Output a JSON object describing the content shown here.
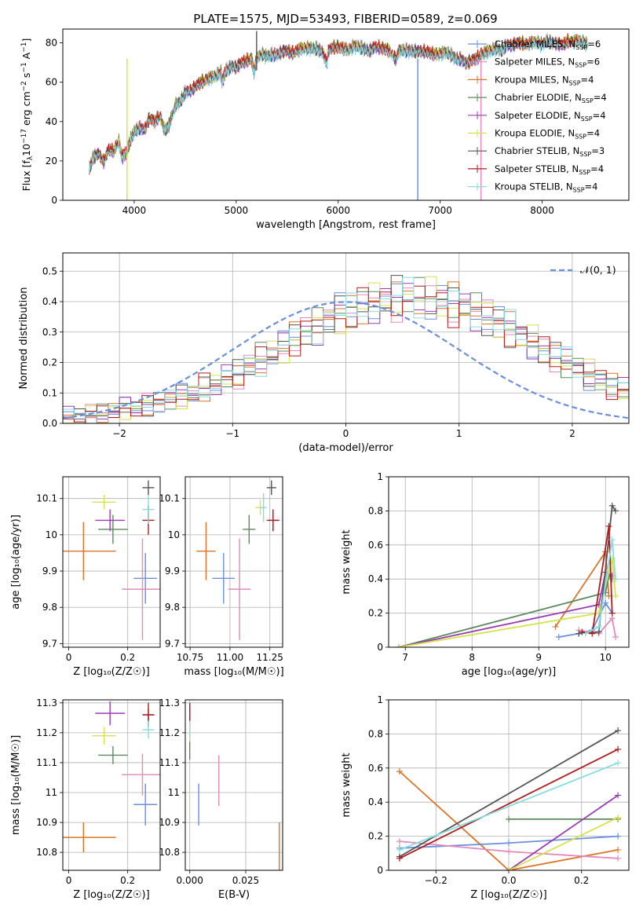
{
  "title": "PLATE=1575, MJD=53493, FIBERID=0589, z=0.069",
  "series": [
    {
      "name": "Chabrier MILES",
      "nssp": "6",
      "color": "#6a8fdd"
    },
    {
      "name": "Salpeter MILES",
      "nssp": "6",
      "color": "#e389bb"
    },
    {
      "name": "Kroupa MILES",
      "nssp": "4",
      "color": "#d9762a"
    },
    {
      "name": "Chabrier ELODIE",
      "nssp": "4",
      "color": "#5c8a5c"
    },
    {
      "name": "Salpeter ELODIE",
      "nssp": "4",
      "color": "#9a3cb5"
    },
    {
      "name": "Kroupa ELODIE",
      "nssp": "4",
      "color": "#d6e24a"
    },
    {
      "name": "Chabrier STELIB",
      "nssp": "3",
      "color": "#555555"
    },
    {
      "name": "Salpeter STELIB",
      "nssp": "4",
      "color": "#b01c1c"
    },
    {
      "name": "Kroupa STELIB",
      "nssp": "4",
      "color": "#86dde0"
    }
  ],
  "chart_data": [
    {
      "id": "spectrum",
      "type": "line",
      "xlabel": "wavelength [Angstrom, rest frame]",
      "ylabel_main": "Flux [f",
      "ylabel_sub": "λ",
      "ylabel_rest": "10",
      "ylabel_exp1": "−17",
      "ylabel_rest2": " erg cm",
      "ylabel_exp2": "−2",
      "ylabel_rest3": " s",
      "ylabel_exp3": "−1",
      "ylabel_rest4": " A",
      "ylabel_exp4": "−1",
      "ylabel_end": "]",
      "xlim": [
        3300,
        8850
      ],
      "ylim": [
        0,
        87
      ],
      "xticks": [
        4000,
        5000,
        6000,
        7000,
        8000
      ],
      "yticks": [
        0,
        20,
        40,
        60,
        80
      ],
      "legend_prefix": "N",
      "legend_sub": "SSP",
      "x": [
        3560,
        3600,
        3650,
        3700,
        3750,
        3800,
        3850,
        3880,
        3920,
        3960,
        4000,
        4050,
        4100,
        4150,
        4200,
        4250,
        4300,
        4340,
        4400,
        4450,
        4500,
        4550,
        4600,
        4650,
        4700,
        4750,
        4800,
        4850,
        4861,
        4900,
        4950,
        5000,
        5050,
        5100,
        5150,
        5175,
        5200,
        5250,
        5300,
        5350,
        5400,
        5450,
        5500,
        5550,
        5600,
        5650,
        5700,
        5750,
        5800,
        5850,
        5890,
        5900,
        5950,
        6000,
        6050,
        6100,
        6150,
        6200,
        6250,
        6300,
        6350,
        6400,
        6450,
        6500,
        6563,
        6600,
        6650,
        6700,
        6750,
        6800,
        6850,
        6900,
        6950,
        7000,
        7050,
        7100,
        7150,
        7200,
        7250,
        7300,
        7350,
        7400,
        7450,
        7500,
        7550,
        7600,
        7650,
        7700,
        7750,
        7800,
        7850,
        7900,
        7950,
        8000,
        8050,
        8100,
        8150,
        8200,
        8250,
        8300,
        8350,
        8400,
        8450
      ],
      "y": [
        16,
        22,
        24,
        20,
        26,
        25,
        30,
        22,
        24,
        30,
        35,
        37,
        36,
        42,
        40,
        43,
        35,
        38,
        48,
        50,
        55,
        56,
        58,
        60,
        61,
        62,
        63,
        65,
        60,
        66,
        68,
        68,
        70,
        71,
        72,
        65,
        72,
        74,
        73,
        74,
        74,
        76,
        76,
        75,
        76,
        77,
        77,
        77,
        77,
        75,
        70,
        76,
        78,
        78,
        77,
        76,
        78,
        78,
        77,
        76,
        78,
        78,
        77,
        76,
        72,
        76,
        76,
        76,
        76,
        76,
        76,
        75,
        74,
        74,
        75,
        74,
        72,
        72,
        70,
        71,
        72,
        74,
        75,
        76,
        77,
        76,
        79,
        79,
        80,
        80,
        79,
        80,
        80,
        79,
        81,
        80,
        80,
        79,
        81,
        80,
        81,
        80,
        79
      ]
    },
    {
      "id": "residuals",
      "type": "histogram",
      "xlabel": "(data-model)/error",
      "ylabel": "Normed distribution",
      "xlim": [
        -2.5,
        2.5
      ],
      "ylim": [
        0,
        0.56
      ],
      "xticks": [
        "−2",
        "−1",
        "0",
        "1",
        "2"
      ],
      "xtick_values": [
        -2,
        -1,
        0,
        1,
        2
      ],
      "yticks": [
        0.0,
        0.1,
        0.2,
        0.3,
        0.4,
        0.5
      ],
      "legend": "𝒩(0, 1)",
      "bin_width": 0.1,
      "base": [
        0.02,
        0.02,
        0.03,
        0.03,
        0.04,
        0.05,
        0.05,
        0.06,
        0.07,
        0.08,
        0.09,
        0.1,
        0.12,
        0.13,
        0.15,
        0.16,
        0.19,
        0.21,
        0.23,
        0.25,
        0.28,
        0.3,
        0.32,
        0.34,
        0.36,
        0.37,
        0.39,
        0.4,
        0.4,
        0.41,
        0.42,
        0.41,
        0.41,
        0.4,
        0.39,
        0.38,
        0.37,
        0.35,
        0.33,
        0.31,
        0.29,
        0.27,
        0.24,
        0.22,
        0.2,
        0.18,
        0.16,
        0.14,
        0.12,
        0.11,
        0.09,
        0.08,
        0.07,
        0.06,
        0.05,
        0.04,
        0.04,
        0.03,
        0.03,
        0.02
      ]
    },
    {
      "id": "age_vs_Z",
      "type": "scatter",
      "xlabel": "Z [log₁₀(Z/Z☉)]",
      "ylabel": "age  [log₁₀(age/yr)]",
      "xlim": [
        -0.02,
        0.31
      ],
      "ylim": [
        9.69,
        10.16
      ],
      "xticks": [
        0.0,
        0.2
      ],
      "yticks": [
        9.7,
        9.8,
        9.9,
        10.0,
        10.1
      ],
      "points": [
        {
          "s": 0,
          "x": 0.26,
          "y": 9.88,
          "ex": 0.04,
          "ey": 0.07
        },
        {
          "s": 1,
          "x": 0.25,
          "y": 9.85,
          "ex": 0.07,
          "ey": 0.14
        },
        {
          "s": 2,
          "x": 0.05,
          "y": 9.955,
          "ex": 0.11,
          "ey": 0.08
        },
        {
          "s": 3,
          "x": 0.15,
          "y": 10.015,
          "ex": 0.05,
          "ey": 0.04
        },
        {
          "s": 4,
          "x": 0.14,
          "y": 10.04,
          "ex": 0.05,
          "ey": 0.03
        },
        {
          "s": 5,
          "x": 0.12,
          "y": 10.09,
          "ex": 0.04,
          "ey": 0.02
        },
        {
          "s": 6,
          "x": 0.27,
          "y": 10.13,
          "ex": 0.02,
          "ey": 0.02
        },
        {
          "s": 7,
          "x": 0.27,
          "y": 10.04,
          "ex": 0.02,
          "ey": 0.04
        },
        {
          "s": 8,
          "x": 0.27,
          "y": 10.07,
          "ex": 0.02,
          "ey": 0.04
        }
      ]
    },
    {
      "id": "age_vs_mass",
      "type": "scatter",
      "xlabel": "mass [log₁₀(M/M☉)]",
      "ylabel": "",
      "xlim": [
        10.72,
        11.33
      ],
      "ylim": [
        9.69,
        10.16
      ],
      "xticks": [
        "10.75",
        "11.00",
        "11.25"
      ],
      "xtick_values": [
        10.75,
        11.0,
        11.25
      ],
      "yticks": [
        9.7,
        9.8,
        9.9,
        10.0,
        10.1
      ],
      "points": [
        {
          "s": 0,
          "x": 10.96,
          "y": 9.88,
          "ex": 0.07,
          "ey": 0.07
        },
        {
          "s": 1,
          "x": 11.06,
          "y": 9.85,
          "ex": 0.07,
          "ey": 0.14
        },
        {
          "s": 2,
          "x": 10.85,
          "y": 9.955,
          "ex": 0.06,
          "ey": 0.08
        },
        {
          "s": 3,
          "x": 11.12,
          "y": 10.015,
          "ex": 0.04,
          "ey": 0.04
        },
        {
          "s": 4,
          "x": 11.27,
          "y": 10.04,
          "ex": 0.03,
          "ey": 0.03
        },
        {
          "s": 5,
          "x": 11.19,
          "y": 10.075,
          "ex": 0.03,
          "ey": 0.02
        },
        {
          "s": 6,
          "x": 11.26,
          "y": 10.13,
          "ex": 0.03,
          "ey": 0.02
        },
        {
          "s": 7,
          "x": 11.27,
          "y": 10.04,
          "ex": 0.04,
          "ey": 0.03
        },
        {
          "s": 8,
          "x": 11.21,
          "y": 10.075,
          "ex": 0.02,
          "ey": 0.04
        }
      ]
    },
    {
      "id": "weight_vs_age",
      "type": "line",
      "xlabel": "age  [log₁₀(age/yr)]",
      "ylabel": "mass weight",
      "xlim": [
        6.75,
        10.35
      ],
      "ylim": [
        0,
        1.0
      ],
      "xticks": [
        7,
        8,
        9,
        10
      ],
      "yticks": [
        0.0,
        0.2,
        0.4,
        0.6,
        0.8,
        1.0
      ],
      "lines": [
        {
          "s": 2,
          "pts": [
            [
              9.25,
              0.12
            ],
            [
              10.0,
              0.56
            ],
            [
              10.05,
              0.3
            ]
          ]
        },
        {
          "s": 3,
          "pts": [
            [
              6.9,
              0.0
            ],
            [
              10.0,
              0.32
            ],
            [
              10.05,
              0.42
            ],
            [
              10.1,
              0.4
            ]
          ]
        },
        {
          "s": 4,
          "pts": [
            [
              6.9,
              0.0
            ],
            [
              9.9,
              0.25
            ],
            [
              10.0,
              0.44
            ],
            [
              10.1,
              0.42
            ]
          ]
        },
        {
          "s": 5,
          "pts": [
            [
              6.9,
              0.0
            ],
            [
              9.9,
              0.2
            ],
            [
              10.1,
              0.52
            ],
            [
              10.15,
              0.3
            ]
          ]
        },
        {
          "s": 0,
          "pts": [
            [
              9.3,
              0.06
            ],
            [
              9.6,
              0.08
            ],
            [
              9.8,
              0.1
            ],
            [
              10.0,
              0.26
            ],
            [
              10.1,
              0.2
            ]
          ]
        },
        {
          "s": 1,
          "pts": [
            [
              9.6,
              0.1
            ],
            [
              9.9,
              0.08
            ],
            [
              10.1,
              0.17
            ],
            [
              10.15,
              0.06
            ]
          ]
        },
        {
          "s": 6,
          "pts": [
            [
              9.6,
              0.08
            ],
            [
              9.9,
              0.09
            ],
            [
              10.1,
              0.83
            ],
            [
              10.15,
              0.8
            ]
          ]
        },
        {
          "s": 7,
          "pts": [
            [
              9.65,
              0.09
            ],
            [
              9.8,
              0.08
            ],
            [
              10.05,
              0.71
            ],
            [
              10.1,
              0.2
            ]
          ]
        },
        {
          "s": 8,
          "pts": [
            [
              9.7,
              0.08
            ],
            [
              9.9,
              0.12
            ],
            [
              10.1,
              0.63
            ],
            [
              10.15,
              0.4
            ]
          ]
        }
      ]
    },
    {
      "id": "mass_vs_Z",
      "type": "scatter",
      "xlabel": "Z [log₁₀(Z/Z☉)]",
      "ylabel": "mass [log₁₀(M/M☉)]",
      "xlim": [
        -0.02,
        0.31
      ],
      "ylim": [
        10.74,
        11.31
      ],
      "xticks": [
        0.0,
        0.2
      ],
      "yticks": [
        10.8,
        10.9,
        11.0,
        11.1,
        11.2,
        11.3
      ],
      "points": [
        {
          "s": 0,
          "x": 0.26,
          "y": 10.96,
          "ex": 0.04,
          "ey": 0.07
        },
        {
          "s": 1,
          "x": 0.25,
          "y": 11.06,
          "ex": 0.07,
          "ey": 0.07
        },
        {
          "s": 2,
          "x": 0.05,
          "y": 10.85,
          "ex": 0.11,
          "ey": 0.05
        },
        {
          "s": 3,
          "x": 0.15,
          "y": 11.125,
          "ex": 0.05,
          "ey": 0.03
        },
        {
          "s": 4,
          "x": 0.14,
          "y": 11.265,
          "ex": 0.05,
          "ey": 0.04
        },
        {
          "s": 5,
          "x": 0.12,
          "y": 11.19,
          "ex": 0.04,
          "ey": 0.03
        },
        {
          "s": 6,
          "x": 0.27,
          "y": 11.26,
          "ex": 0.02,
          "ey": 0.02
        },
        {
          "s": 7,
          "x": 0.27,
          "y": 11.26,
          "ex": 0.02,
          "ey": 0.04
        },
        {
          "s": 8,
          "x": 0.27,
          "y": 11.21,
          "ex": 0.02,
          "ey": 0.03
        }
      ]
    },
    {
      "id": "mass_vs_ebv",
      "type": "scatter",
      "xlabel": "E(B-V)",
      "ylabel": "",
      "xlim": [
        -0.002,
        0.0415
      ],
      "ylim": [
        10.74,
        11.31
      ],
      "xticks": [
        "0.000",
        "0.025"
      ],
      "xtick_values": [
        0.0,
        0.025
      ],
      "yticks": [
        10.8,
        10.9,
        11.0,
        11.1,
        11.2,
        11.3
      ],
      "points": [
        {
          "s": 0,
          "x": 0.004,
          "y": 10.96,
          "ex": 0,
          "ey": 0.07
        },
        {
          "s": 1,
          "x": 0.013,
          "y": 11.04,
          "ex": 0,
          "ey": 0.085
        },
        {
          "s": 2,
          "x": 0.04,
          "y": 10.79,
          "ex": 0,
          "ey": 0.11
        },
        {
          "s": 3,
          "x": 0.0,
          "y": 11.15,
          "ex": 0,
          "ey": 0.04
        },
        {
          "s": 4,
          "x": 0.0,
          "y": 11.25,
          "ex": 0,
          "ey": 0.04
        },
        {
          "s": 5,
          "x": 0.0,
          "y": 11.2,
          "ex": 0,
          "ey": 0.03
        },
        {
          "s": 6,
          "x": 0.0,
          "y": 11.26,
          "ex": 0,
          "ey": 0.02
        },
        {
          "s": 7,
          "x": 0.0,
          "y": 11.26,
          "ex": 0,
          "ey": 0.04
        },
        {
          "s": 8,
          "x": 0.0,
          "y": 11.21,
          "ex": 0,
          "ey": 0.03
        }
      ]
    },
    {
      "id": "weight_vs_Z",
      "type": "line",
      "xlabel": "Z [log₁₀(Z/Z☉)]",
      "ylabel": "mass weight",
      "xlim": [
        -0.33,
        0.33
      ],
      "ylim": [
        0,
        1.0
      ],
      "xticks": [
        "−0.2",
        "0.0",
        "0.2"
      ],
      "xtick_values": [
        -0.2,
        0.0,
        0.2
      ],
      "yticks": [
        0.0,
        0.2,
        0.4,
        0.6,
        0.8,
        1.0
      ],
      "lines": [
        {
          "s": 2,
          "pts": [
            [
              -0.3,
              0.58
            ],
            [
              0.0,
              0.0
            ],
            [
              0.3,
              0.12
            ]
          ]
        },
        {
          "s": 0,
          "pts": [
            [
              -0.3,
              0.13
            ],
            [
              0.0,
              0.16
            ],
            [
              0.3,
              0.2
            ]
          ]
        },
        {
          "s": 1,
          "pts": [
            [
              -0.3,
              0.17
            ],
            [
              0.0,
              0.11
            ],
            [
              0.3,
              0.07
            ]
          ]
        },
        {
          "s": 3,
          "pts": [
            [
              0.0,
              0.3
            ],
            [
              0.3,
              0.3
            ]
          ]
        },
        {
          "s": 4,
          "pts": [
            [
              0.0,
              0.0
            ],
            [
              0.3,
              0.44
            ]
          ]
        },
        {
          "s": 5,
          "pts": [
            [
              0.0,
              0.0
            ],
            [
              0.3,
              0.31
            ]
          ]
        },
        {
          "s": 6,
          "pts": [
            [
              -0.3,
              0.08
            ],
            [
              0.3,
              0.82
            ]
          ]
        },
        {
          "s": 7,
          "pts": [
            [
              -0.3,
              0.07
            ],
            [
              0.3,
              0.71
            ]
          ]
        },
        {
          "s": 8,
          "pts": [
            [
              -0.3,
              0.12
            ],
            [
              0.3,
              0.63
            ]
          ]
        }
      ]
    }
  ]
}
